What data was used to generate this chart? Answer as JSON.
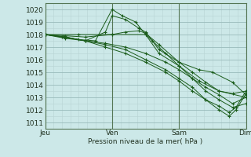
{
  "bg_color": "#cce8e8",
  "plot_bg": "#cce8e8",
  "grid_color_major": "#99bbbb",
  "grid_color_minor": "#b8d4d4",
  "line_color": "#1a5c1a",
  "ylabel_ticks": [
    1011,
    1012,
    1013,
    1014,
    1015,
    1016,
    1017,
    1018,
    1019,
    1020
  ],
  "xlabels": [
    "Jeu",
    "Ven",
    "Sam",
    "Dim"
  ],
  "xlabel": "Pression niveau de la mer( hPa )",
  "ylim": [
    1010.5,
    1020.5
  ],
  "xlim": [
    0.0,
    3.0
  ],
  "lines": [
    [
      0.0,
      1018.0,
      0.25,
      1017.8,
      0.5,
      1017.6,
      0.75,
      1017.5,
      1.0,
      1020.0,
      1.15,
      1019.5,
      1.35,
      1019.0,
      1.5,
      1018.0,
      1.7,
      1016.5,
      2.0,
      1015.5,
      2.3,
      1014.3,
      2.6,
      1013.5,
      3.0,
      1013.0
    ],
    [
      0.0,
      1018.0,
      0.3,
      1017.7,
      0.6,
      1017.5,
      0.9,
      1018.2,
      1.0,
      1019.5,
      1.2,
      1019.2,
      1.4,
      1018.5,
      1.5,
      1018.2,
      1.7,
      1016.8,
      2.0,
      1015.8,
      2.3,
      1015.2,
      2.5,
      1015.0,
      2.8,
      1014.2,
      3.0,
      1013.2
    ],
    [
      0.0,
      1018.0,
      0.5,
      1018.0,
      1.0,
      1018.0,
      1.5,
      1018.0,
      1.6,
      1017.5,
      1.8,
      1016.5,
      2.0,
      1015.5,
      2.2,
      1014.5,
      2.4,
      1013.5,
      2.6,
      1012.8,
      2.8,
      1012.2,
      3.0,
      1012.5
    ],
    [
      0.0,
      1018.0,
      0.3,
      1017.9,
      0.6,
      1017.8,
      1.0,
      1018.0,
      1.2,
      1018.2,
      1.4,
      1018.3,
      1.5,
      1018.1,
      1.7,
      1017.2,
      2.0,
      1015.8,
      2.2,
      1015.0,
      2.4,
      1014.2,
      2.6,
      1013.5,
      2.8,
      1013.3,
      3.0,
      1013.5
    ],
    [
      0.0,
      1018.0,
      0.3,
      1017.8,
      0.6,
      1017.5,
      0.9,
      1017.3,
      1.2,
      1017.0,
      1.5,
      1016.5,
      1.8,
      1015.8,
      2.0,
      1015.2,
      2.2,
      1014.5,
      2.4,
      1013.8,
      2.6,
      1013.2,
      2.8,
      1012.5,
      3.0,
      1013.0
    ],
    [
      0.0,
      1018.0,
      0.3,
      1017.8,
      0.6,
      1017.5,
      0.9,
      1017.2,
      1.2,
      1016.8,
      1.5,
      1016.0,
      1.8,
      1015.2,
      2.0,
      1014.5,
      2.2,
      1013.8,
      2.4,
      1012.8,
      2.6,
      1012.0,
      2.75,
      1011.5,
      2.85,
      1012.0,
      3.0,
      1013.3
    ],
    [
      0.0,
      1018.0,
      0.3,
      1017.8,
      0.6,
      1017.5,
      0.9,
      1017.0,
      1.2,
      1016.5,
      1.5,
      1015.8,
      1.8,
      1015.0,
      2.0,
      1014.3,
      2.2,
      1013.5,
      2.4,
      1012.8,
      2.6,
      1012.3,
      2.75,
      1011.8,
      2.85,
      1012.2,
      3.0,
      1013.5
    ]
  ]
}
